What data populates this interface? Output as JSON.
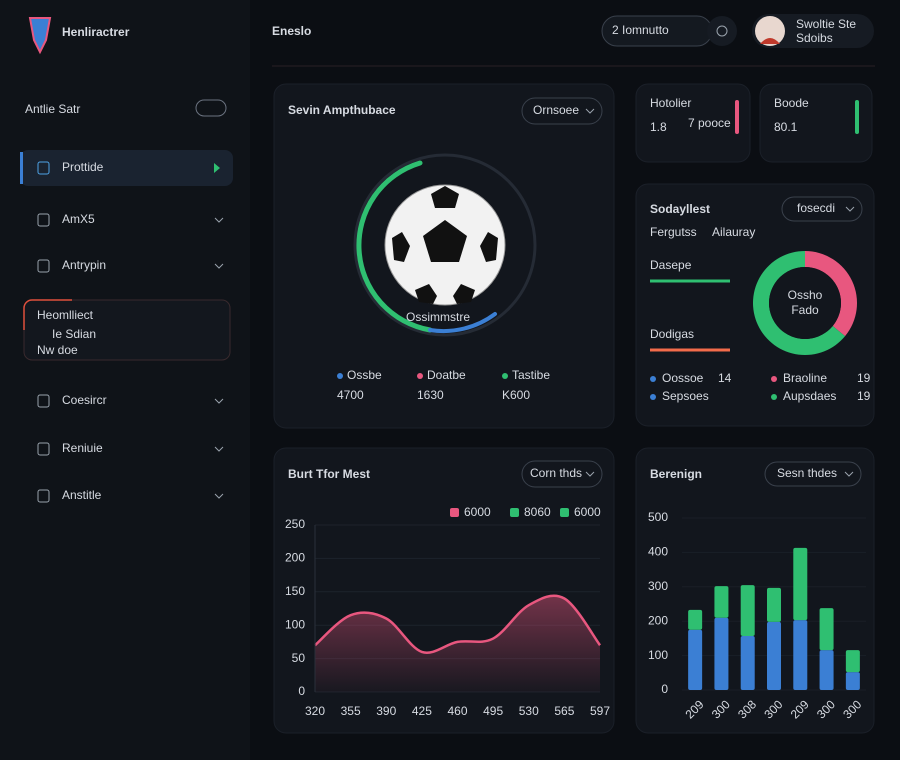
{
  "sidebar": {
    "brand": "Henliractrer",
    "section": "Antlie Satr",
    "nav": [
      "Prottide",
      "AmX5",
      "Antrypin",
      "Coesircr",
      "Reniuie",
      "Anstitle"
    ],
    "card": {
      "title": "Heomlliect",
      "subtitle": "Ie Sdian",
      "note": "Nw doe"
    }
  },
  "header": {
    "title": "Eneslo",
    "search": "2  Iomnutto",
    "user": {
      "name": "Swoltie Ste",
      "role": "Sdoibs"
    }
  },
  "main_card": {
    "title": "Sevin Ampthubace",
    "button": "Ornsoee",
    "ring_label": "Ossimmstre",
    "stats": [
      {
        "label": "Ossbe",
        "value": "4700"
      },
      {
        "label": "Doatbe",
        "value": "1630"
      },
      {
        "label": "Tastibe",
        "value": "K600"
      }
    ]
  },
  "stat_cards": [
    {
      "label": "Hotolier",
      "value": "1.8",
      "unit": "7 pooce"
    },
    {
      "label": "Boode",
      "value": "80.1"
    }
  ],
  "donut_card": {
    "title": "Sodayllest",
    "button": "fosecdi",
    "subtitle": "Fergutss",
    "subtitle_accent": "Ailauray",
    "bars": [
      "Dasepe",
      "Dodigas"
    ],
    "center": [
      "Ossho",
      "Fado"
    ],
    "segments": [
      {
        "color": "#e8577f",
        "value": 36
      },
      {
        "color": "#2fbf71",
        "value": 64
      }
    ],
    "legend": [
      {
        "name": "Oossoe",
        "value": "14",
        "color": "#3b7fd4"
      },
      {
        "name": "Braoline",
        "value": "19",
        "color": "#e8577f"
      },
      {
        "name": "Sepsoes",
        "color": "#3b7fd4"
      },
      {
        "name": "Aupsdaes",
        "value": "19",
        "color": "#2fbf71"
      }
    ]
  },
  "burn_chart": {
    "type": "area",
    "title": "Burt Tfor Mest",
    "button": "Corn thds",
    "legend": [
      {
        "name": "6000",
        "color": "#e8577f"
      },
      {
        "name": "8060",
        "color": "#2fbf71"
      },
      {
        "name": "6000",
        "color": "#2fbf71"
      }
    ],
    "categories": [
      "320",
      "355",
      "390",
      "425",
      "460",
      "495",
      "530",
      "565",
      "597"
    ],
    "values": [
      70,
      115,
      110,
      60,
      75,
      80,
      130,
      140,
      70
    ],
    "color": "#e8577f",
    "ylim": [
      0,
      250
    ],
    "yticks": [
      0,
      50,
      100,
      150,
      200,
      250
    ]
  },
  "bar_chart": {
    "type": "bar",
    "title": "Berenign",
    "button": "Sesn thdes",
    "categories": [
      "209",
      "300",
      "308",
      "300",
      "209",
      "300",
      "300"
    ],
    "series": [
      {
        "color": "#3b7fd4",
        "values": [
          175,
          210,
          157,
          198,
          203,
          116,
          52
        ]
      },
      {
        "color": "#2fbf71",
        "values": [
          58,
          92,
          148,
          99,
          210,
          122,
          64
        ]
      }
    ],
    "ylim": [
      0,
      500
    ],
    "yticks": [
      0,
      100,
      200,
      300,
      400,
      500
    ]
  }
}
